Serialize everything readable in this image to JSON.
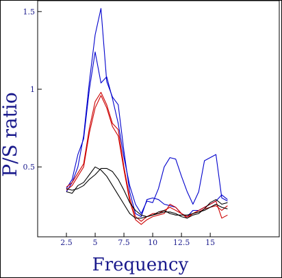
{
  "chart_data": {
    "type": "line",
    "title": "",
    "xlabel": "Frequency",
    "ylabel": "P/S ratio",
    "xlim": [
      0,
      21
    ],
    "ylim": [
      0.05,
      1.57
    ],
    "xticks": [
      {
        "value": 2.5,
        "label": "2.5"
      },
      {
        "value": 5,
        "label": "5"
      },
      {
        "value": 7.5,
        "label": "7.5"
      },
      {
        "value": 10,
        "label": "10"
      },
      {
        "value": 12.5,
        "label": "12.5"
      },
      {
        "value": 15,
        "label": "15"
      }
    ],
    "yticks": [
      {
        "value": 0.5,
        "label": "0.5"
      },
      {
        "value": 1,
        "label": "1"
      },
      {
        "value": 1.5,
        "label": "1.5"
      }
    ],
    "grid": false,
    "legend": "none",
    "series": [
      {
        "color": "#0000cc",
        "x": [
          2.5,
          3.0,
          3.5,
          4.0,
          4.5,
          5.0,
          5.5,
          6.0,
          6.5,
          7.0,
          7.5,
          8.0,
          8.5,
          9.0,
          9.5,
          10.0,
          10.5,
          11.0,
          11.5,
          12.0,
          12.5,
          13.0,
          13.5,
          14.0,
          14.5,
          15.0,
          15.5,
          16.0,
          16.5
        ],
        "y": [
          0.36,
          0.42,
          0.58,
          0.68,
          1.0,
          1.24,
          1.04,
          1.08,
          0.94,
          0.78,
          0.56,
          0.38,
          0.26,
          0.2,
          0.28,
          0.27,
          0.36,
          0.5,
          0.56,
          0.55,
          0.44,
          0.34,
          0.26,
          0.34,
          0.54,
          0.56,
          0.58,
          0.3,
          0.28
        ]
      },
      {
        "color": "#0000cc",
        "x": [
          2.5,
          3.0,
          3.5,
          4.0,
          4.5,
          5.0,
          5.5,
          6.0,
          6.5,
          7.0,
          7.5,
          8.0,
          8.5,
          9.0,
          9.5,
          10.0,
          10.5,
          11.0,
          11.5,
          12.0,
          12.5,
          13.0,
          13.5,
          14.0,
          14.5,
          15.0,
          15.5,
          16.0,
          16.5
        ],
        "y": [
          0.34,
          0.4,
          0.5,
          0.7,
          1.05,
          1.35,
          1.52,
          1.05,
          0.95,
          0.9,
          0.6,
          0.34,
          0.2,
          0.18,
          0.29,
          0.3,
          0.29,
          0.26,
          0.25,
          0.24,
          0.2,
          0.18,
          0.22,
          0.22,
          0.24,
          0.26,
          0.28,
          0.32,
          0.29
        ]
      },
      {
        "color": "#cc0000",
        "x": [
          2.5,
          3.0,
          3.5,
          4.0,
          4.5,
          5.0,
          5.5,
          6.0,
          6.5,
          7.0,
          7.5,
          8.0,
          8.5,
          9.0,
          9.5,
          10.0,
          10.5,
          11.0,
          11.5,
          12.0,
          12.5,
          13.0,
          13.5,
          14.0,
          14.5,
          15.0,
          15.5,
          16.0,
          16.5
        ],
        "y": [
          0.37,
          0.4,
          0.46,
          0.52,
          0.75,
          0.92,
          0.98,
          0.9,
          0.78,
          0.74,
          0.5,
          0.3,
          0.18,
          0.15,
          0.18,
          0.2,
          0.2,
          0.22,
          0.24,
          0.22,
          0.2,
          0.18,
          0.2,
          0.22,
          0.24,
          0.26,
          0.28,
          0.17,
          0.19
        ]
      },
      {
        "color": "#cc0000",
        "x": [
          2.5,
          3.0,
          3.5,
          4.0,
          4.5,
          5.0,
          5.5,
          6.0,
          6.5,
          7.0,
          7.5,
          8.0,
          8.5,
          9.0,
          9.5,
          10.0,
          10.5,
          11.0,
          11.5,
          12.0,
          12.5,
          13.0,
          13.5,
          14.0,
          14.5,
          15.0,
          15.5,
          16.0,
          16.5
        ],
        "y": [
          0.35,
          0.38,
          0.44,
          0.5,
          0.72,
          0.88,
          0.96,
          0.88,
          0.76,
          0.7,
          0.48,
          0.28,
          0.16,
          0.13,
          0.16,
          0.18,
          0.19,
          0.2,
          0.26,
          0.24,
          0.2,
          0.17,
          0.2,
          0.21,
          0.23,
          0.24,
          0.25,
          0.22,
          0.25
        ]
      },
      {
        "color": "#000000",
        "x": [
          2.5,
          3.0,
          3.5,
          4.0,
          4.5,
          5.0,
          5.5,
          6.0,
          6.5,
          7.0,
          7.5,
          8.0,
          8.5,
          9.0,
          9.5,
          10.0,
          10.5,
          11.0,
          11.5,
          12.0,
          12.5,
          13.0,
          13.5,
          14.0,
          14.5,
          15.0,
          15.5,
          16.0,
          16.5
        ],
        "y": [
          0.34,
          0.33,
          0.38,
          0.4,
          0.45,
          0.5,
          0.48,
          0.44,
          0.38,
          0.32,
          0.26,
          0.2,
          0.17,
          0.17,
          0.18,
          0.19,
          0.2,
          0.21,
          0.21,
          0.2,
          0.18,
          0.17,
          0.19,
          0.2,
          0.23,
          0.27,
          0.29,
          0.26,
          0.27
        ]
      },
      {
        "color": "#000000",
        "x": [
          2.5,
          3.0,
          3.5,
          4.0,
          4.5,
          5.0,
          5.5,
          6.0,
          6.5,
          7.0,
          7.5,
          8.0,
          8.5,
          9.0,
          9.5,
          10.0,
          10.5,
          11.0,
          11.5,
          12.0,
          12.5,
          13.0,
          13.5,
          14.0,
          14.5,
          15.0,
          15.5,
          16.0,
          16.5
        ],
        "y": [
          0.36,
          0.35,
          0.36,
          0.38,
          0.42,
          0.45,
          0.49,
          0.49,
          0.47,
          0.42,
          0.35,
          0.27,
          0.22,
          0.19,
          0.18,
          0.19,
          0.21,
          0.22,
          0.2,
          0.19,
          0.19,
          0.19,
          0.2,
          0.21,
          0.22,
          0.24,
          0.26,
          0.24,
          0.23
        ]
      }
    ]
  }
}
